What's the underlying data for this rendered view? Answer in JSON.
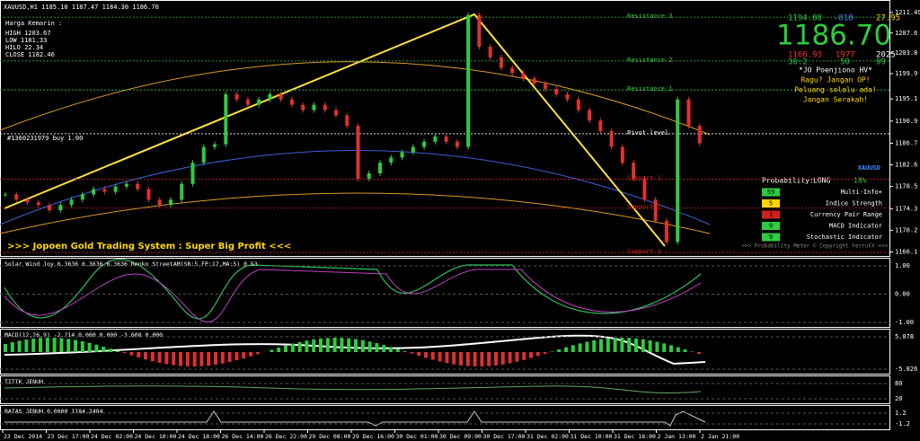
{
  "header": {
    "symbol": "XAUUSD,H1  1185.10 1187.47 1184.30 1186.70",
    "order": "#1360231979 buy 1.00",
    "banner": ">>> Jopoen Gold Trading System : Super Big Profit <<<"
  },
  "info_left": {
    "title": "Harga Kemarin :",
    "lines": [
      "HIGH 1203.67",
      "LOW 1181.33",
      "HILO 22.34",
      "CLOSE 1182.46"
    ]
  },
  "info_right": {
    "bid": "1194.88",
    "change": "-818",
    "pct": "27.95",
    "price": "1186.70",
    "low": "1166.93",
    "count": "1977",
    "year": "2025",
    "timer": [
      "30:2",
      "50",
      "99"
    ],
    "notes": [
      "*JO Poenjiono HV*",
      "Ragu? Jangan OP!",
      "Peluang selalu ada!",
      "Jangan Serakah!"
    ]
  },
  "levels": [
    {
      "name": "Resistance 3",
      "value": 1210.6
    },
    {
      "name": "Resistance 2",
      "value": 1202.3
    },
    {
      "name": "Resistance 1",
      "value": 1196.8
    },
    {
      "name": "Pivot level",
      "value": 1188.5
    },
    {
      "name": "Support 1",
      "value": 1179.9
    },
    {
      "name": "Support 2",
      "value": 1174.4
    },
    {
      "name": "Support 3",
      "value": 1166.0
    }
  ],
  "panel": {
    "symbol": "XAUUSD",
    "probability_label": "Probability:",
    "direction": "LONG",
    "probability": "18%",
    "rows": [
      {
        "badge": "59",
        "label": "Multi-Info+"
      },
      {
        "badge": "5",
        "label": "Indice Strength"
      },
      {
        "badge": "1",
        "label": "Currency Pair Range"
      },
      {
        "badge": "9",
        "label": "MACD Indicator"
      },
      {
        "badge": "9",
        "label": "Stochastic Indicator"
      }
    ],
    "footer": ">>> Probability Meter © Copyright FerruFX <<<"
  },
  "price": {
    "ylim": [
      1165.5,
      1212.5
    ],
    "yticks": [
      1211.49,
      1207.6,
      1203.8,
      1199.9,
      1195.1,
      1190.9,
      1186.7,
      1182.6,
      1178.5,
      1174.3,
      1170.2,
      1166.1
    ],
    "closes": [
      1177,
      1176,
      1175.5,
      1175,
      1174,
      1175,
      1176,
      1177,
      1178,
      1177.5,
      1178.5,
      1179,
      1178,
      1176,
      1175,
      1176,
      1179,
      1183,
      1186,
      1186.5,
      1196,
      1195,
      1194,
      1195,
      1196,
      1195,
      1194,
      1193,
      1194,
      1193,
      1192,
      1190,
      1180,
      1181,
      1183,
      1184,
      1185,
      1186,
      1187,
      1188,
      1187,
      1186,
      1211,
      1205,
      1203,
      1201,
      1200,
      1199,
      1198,
      1197,
      1196,
      1195,
      1193,
      1191,
      1189,
      1186,
      1183,
      1180,
      1176,
      1172,
      1168,
      1195,
      1190,
      1186.7
    ]
  },
  "subwindows": [
    {
      "label": "Solar Wind Joy 6.3636 6.3636 6.3636  Renko StreetAM(SR:5,FP:17,MA:5) 0.53",
      "ticks": [
        "1.00",
        "0.00",
        "-1.00"
      ]
    },
    {
      "label": "MACD(12,26,9) -2.214 0.000 0.000 -3.608 0.000",
      "ticks": [
        "5.078",
        "-5.826"
      ]
    },
    {
      "label": "TITIK JENUH",
      "ticks": [
        "80",
        "20"
      ]
    },
    {
      "label": "BATAS JENUH 0.0000 1184.2484",
      "ticks": [
        "1.2",
        "-1.2"
      ]
    }
  ],
  "xlabels": [
    "23 Dec 2014",
    "23 Dec 17:00",
    "24 Dec 02:00",
    "24 Dec 10:00",
    "24 Dec 18:00",
    "26 Dec 14:00",
    "26 Dec 22:00",
    "29 Dec 08:00",
    "29 Dec 16:00",
    "30 Dec 01:00",
    "30 Dec 09:00",
    "30 Dec 17:00",
    "31 Dec 02:00",
    "31 Dec 10:00",
    "31 Dec 18:00",
    "2 Jan 13:00",
    "2 Jan 21:00"
  ]
}
